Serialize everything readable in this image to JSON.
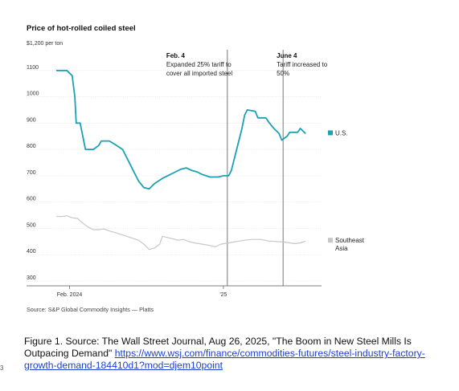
{
  "chart_data": {
    "type": "line",
    "title": "Price of hot-rolled coiled steel",
    "unit_label": "$1,200 per ton",
    "ylim": [
      300,
      1200
    ],
    "yticks": [
      1100,
      1000,
      900,
      800,
      700,
      600,
      500,
      400,
      300
    ],
    "x_tick_labels": [
      {
        "label": "Feb. 2024",
        "t": 0.05
      },
      {
        "label": "'25",
        "t": 0.63
      }
    ],
    "series": [
      {
        "name": "U.S.",
        "color": "#1aa1b3",
        "points": [
          [
            0.0,
            1100
          ],
          [
            0.04,
            1100
          ],
          [
            0.06,
            1080
          ],
          [
            0.07,
            1000
          ],
          [
            0.075,
            900
          ],
          [
            0.09,
            900
          ],
          [
            0.11,
            800
          ],
          [
            0.14,
            800
          ],
          [
            0.16,
            815
          ],
          [
            0.17,
            832
          ],
          [
            0.2,
            832
          ],
          [
            0.22,
            820
          ],
          [
            0.25,
            800
          ],
          [
            0.27,
            760
          ],
          [
            0.29,
            720
          ],
          [
            0.31,
            680
          ],
          [
            0.33,
            655
          ],
          [
            0.35,
            650
          ],
          [
            0.37,
            670
          ],
          [
            0.4,
            690
          ],
          [
            0.42,
            700
          ],
          [
            0.45,
            715
          ],
          [
            0.47,
            725
          ],
          [
            0.49,
            730
          ],
          [
            0.51,
            720
          ],
          [
            0.53,
            715
          ],
          [
            0.55,
            705
          ],
          [
            0.58,
            695
          ],
          [
            0.61,
            695
          ],
          [
            0.63,
            700
          ],
          [
            0.65,
            700
          ],
          [
            0.66,
            720
          ],
          [
            0.68,
            800
          ],
          [
            0.7,
            880
          ],
          [
            0.71,
            930
          ],
          [
            0.72,
            950
          ],
          [
            0.75,
            945
          ],
          [
            0.76,
            920
          ],
          [
            0.79,
            920
          ],
          [
            0.8,
            905
          ],
          [
            0.82,
            880
          ],
          [
            0.84,
            860
          ],
          [
            0.85,
            835
          ],
          [
            0.87,
            850
          ],
          [
            0.88,
            865
          ],
          [
            0.91,
            865
          ],
          [
            0.92,
            880
          ],
          [
            0.93,
            870
          ],
          [
            0.94,
            860
          ]
        ]
      },
      {
        "name": "Southeast Asia",
        "label_lines": [
          "Southeast",
          "Asia"
        ],
        "color": "#c7c7c7",
        "points": [
          [
            0.0,
            545
          ],
          [
            0.02,
            545
          ],
          [
            0.04,
            548
          ],
          [
            0.06,
            540
          ],
          [
            0.08,
            538
          ],
          [
            0.1,
            520
          ],
          [
            0.12,
            505
          ],
          [
            0.14,
            495
          ],
          [
            0.16,
            495
          ],
          [
            0.18,
            498
          ],
          [
            0.2,
            490
          ],
          [
            0.22,
            485
          ],
          [
            0.25,
            475
          ],
          [
            0.28,
            465
          ],
          [
            0.31,
            455
          ],
          [
            0.33,
            440
          ],
          [
            0.35,
            420
          ],
          [
            0.37,
            425
          ],
          [
            0.39,
            440
          ],
          [
            0.4,
            470
          ],
          [
            0.42,
            465
          ],
          [
            0.44,
            460
          ],
          [
            0.46,
            455
          ],
          [
            0.48,
            458
          ],
          [
            0.5,
            450
          ],
          [
            0.52,
            445
          ],
          [
            0.55,
            440
          ],
          [
            0.58,
            435
          ],
          [
            0.6,
            430
          ],
          [
            0.62,
            440
          ],
          [
            0.65,
            445
          ],
          [
            0.68,
            450
          ],
          [
            0.71,
            455
          ],
          [
            0.74,
            458
          ],
          [
            0.77,
            458
          ],
          [
            0.8,
            452
          ],
          [
            0.83,
            450
          ],
          [
            0.86,
            448
          ],
          [
            0.88,
            445
          ],
          [
            0.9,
            442
          ],
          [
            0.92,
            445
          ],
          [
            0.93,
            448
          ],
          [
            0.94,
            452
          ]
        ]
      }
    ],
    "annotations": [
      {
        "t": 0.645,
        "title": "Feb. 4",
        "lines": [
          "Expanded 25% tariff to",
          "cover all imported steel"
        ]
      },
      {
        "t": 0.855,
        "title": "June 4",
        "lines": [
          "Tariff increased to",
          "50%"
        ]
      }
    ],
    "source": "Source: S&P Global Commodity Insights — Platts",
    "grid": true
  },
  "caption": {
    "text": "Figure 1. Source: The Wall Street Journal, Aug 26, 2025, \"The Boom in New Steel Mills Is Outpacing Demand\"",
    "link": "https://www.wsj.com/finance/commodities-futures/steel-industry-factory-growth-demand-184410d1?mod=djem10point"
  },
  "left_marker": "3"
}
